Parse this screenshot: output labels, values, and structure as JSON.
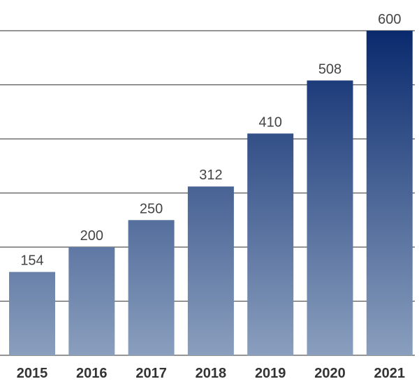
{
  "chart_data": {
    "type": "bar",
    "title": "",
    "xlabel": "",
    "ylabel": "",
    "categories": [
      "2015",
      "2016",
      "2017",
      "2018",
      "2019",
      "2020",
      "2021"
    ],
    "values": [
      154,
      200,
      250,
      312,
      410,
      508,
      600
    ],
    "value_labels": [
      "154",
      "200",
      "250",
      "312",
      "410",
      "508",
      "600"
    ],
    "ylim": [
      0,
      600
    ],
    "gridlines": [
      0,
      100,
      200,
      300,
      400,
      500,
      600
    ],
    "grid": true,
    "legend": "none",
    "colors": {
      "bar_top": "#0a2a6e",
      "bar_bottom": "#8a9fbe",
      "grid": "#555555",
      "value_text": "#444444",
      "tick_text": "#333333"
    }
  }
}
